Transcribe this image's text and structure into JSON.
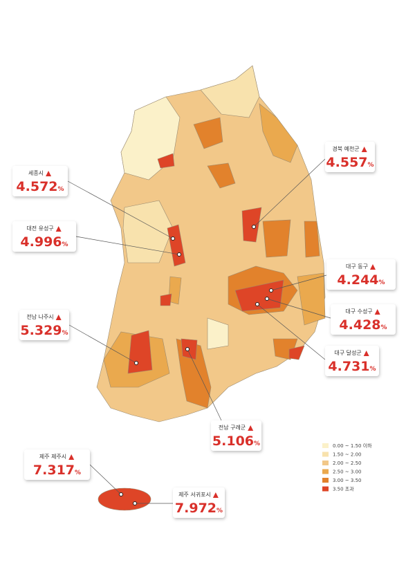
{
  "callouts": [
    {
      "name": "경북 예천군",
      "value": "4.557",
      "unit": "%"
    },
    {
      "name": "세종시",
      "value": "4.572",
      "unit": "%"
    },
    {
      "name": "대전 유성구",
      "value": "4.996",
      "unit": "%"
    },
    {
      "name": "대구 동구",
      "value": "4.244",
      "unit": "%"
    },
    {
      "name": "대구 수성구",
      "value": "4.428",
      "unit": "%"
    },
    {
      "name": "대구 달성군",
      "value": "4.731",
      "unit": "%"
    },
    {
      "name": "전남 나주시",
      "value": "5.329",
      "unit": "%"
    },
    {
      "name": "전남 구례군",
      "value": "5.106",
      "unit": "%"
    },
    {
      "name": "제주 제주시",
      "value": "7.317",
      "unit": "%"
    },
    {
      "name": "제주 서귀포시",
      "value": "7.972",
      "unit": "%"
    }
  ],
  "legend": [
    {
      "label": "0.00 ~ 1.50 이하",
      "color": "#fbf1c9"
    },
    {
      "label": "1.50 ~ 2.00",
      "color": "#f8e2ad"
    },
    {
      "label": "2.00 ~ 2.50",
      "color": "#f2c889"
    },
    {
      "label": "2.50 ~ 3.00",
      "color": "#eaa94e"
    },
    {
      "label": "3.00 ~ 3.50",
      "color": "#e2822c"
    },
    {
      "label": "3.50 초과",
      "color": "#de4527"
    }
  ]
}
